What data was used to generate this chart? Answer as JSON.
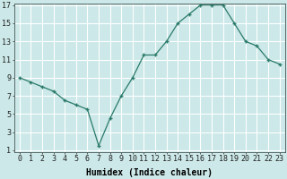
{
  "x": [
    0,
    1,
    2,
    3,
    4,
    5,
    6,
    7,
    8,
    9,
    10,
    11,
    12,
    13,
    14,
    15,
    16,
    17,
    18,
    19,
    20,
    21,
    22,
    23
  ],
  "y": [
    9,
    8.5,
    8,
    7.5,
    6.5,
    6,
    5.5,
    1.5,
    4.5,
    7.0,
    9.0,
    11.5,
    11.5,
    13.0,
    15.0,
    16.0,
    17.0,
    17.0,
    17.0,
    15.0,
    13.0,
    12.5,
    11.0,
    10.5
  ],
  "xlabel": "Humidex (Indice chaleur)",
  "bg_color": "#cce8e8",
  "grid_color": "#ffffff",
  "grid_minor_color": "#ddeaea",
  "line_color": "#2a7a6a",
  "marker_color": "#2a7a6a",
  "ylim": [
    1,
    17
  ],
  "xlim": [
    -0.5,
    23.5
  ],
  "yticks": [
    1,
    3,
    5,
    7,
    9,
    11,
    13,
    15,
    17
  ],
  "xticks": [
    0,
    1,
    2,
    3,
    4,
    5,
    6,
    7,
    8,
    9,
    10,
    11,
    12,
    13,
    14,
    15,
    16,
    17,
    18,
    19,
    20,
    21,
    22,
    23
  ],
  "xtick_labels": [
    "0",
    "1",
    "2",
    "3",
    "4",
    "5",
    "6",
    "7",
    "8",
    "9",
    "10",
    "11",
    "12",
    "13",
    "14",
    "15",
    "16",
    "17",
    "18",
    "19",
    "20",
    "21",
    "22",
    "23"
  ],
  "font_family": "monospace",
  "xlabel_fontsize": 7,
  "tick_fontsize": 6
}
